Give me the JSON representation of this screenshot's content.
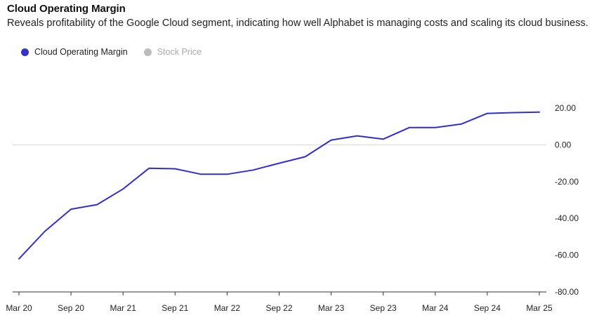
{
  "title": "Cloud Operating Margin",
  "subtitle": "Reveals profitability of the Google Cloud segment, indicating how well Alphabet is managing costs and scaling its cloud business.",
  "legend": {
    "items": [
      {
        "label": "Cloud Operating Margin",
        "color": "#3333cc",
        "active": true
      },
      {
        "label": "Stock Price",
        "color": "#bbbbbb",
        "active": false
      }
    ]
  },
  "chart_data": {
    "type": "line",
    "title": "Cloud Operating Margin",
    "subtitle": "Reveals profitability of the Google Cloud segment, indicating how well Alphabet is managing costs and scaling its cloud business.",
    "xlabel": "",
    "ylabel": "",
    "x": [
      "Mar 20",
      "Jun 20",
      "Sep 20",
      "Dec 20",
      "Mar 21",
      "Jun 21",
      "Sep 21",
      "Dec 21",
      "Mar 22",
      "Jun 22",
      "Sep 22",
      "Dec 22",
      "Mar 23",
      "Jun 23",
      "Sep 23",
      "Dec 23",
      "Mar 24",
      "Jun 24",
      "Sep 24",
      "Dec 24",
      "Mar 25"
    ],
    "x_tick_labels": [
      "Mar 20",
      "Sep 20",
      "Mar 21",
      "Sep 21",
      "Mar 22",
      "Sep 22",
      "Mar 23",
      "Sep 23",
      "Mar 24",
      "Sep 24",
      "Mar 25"
    ],
    "series": [
      {
        "name": "Cloud Operating Margin",
        "color": "#2f2fd0",
        "values": [
          -62.0,
          -47.0,
          -35.0,
          -32.5,
          -24.0,
          -12.7,
          -13.0,
          -16.0,
          -16.0,
          -13.7,
          -10.0,
          -6.5,
          2.6,
          4.9,
          3.1,
          9.4,
          9.4,
          11.3,
          17.1,
          17.5,
          17.8
        ]
      }
    ],
    "y_ticks": [
      20,
      0,
      -20,
      -40,
      -60,
      -80
    ],
    "y_tick_labels": [
      "20.00",
      "0.00",
      "-20.00",
      "-40.00",
      "-60.00",
      "-80.00"
    ],
    "ylim": [
      -80,
      30
    ],
    "y_axis_side": "right",
    "zero_line": true,
    "grid": false,
    "legend_position": "top-left"
  }
}
